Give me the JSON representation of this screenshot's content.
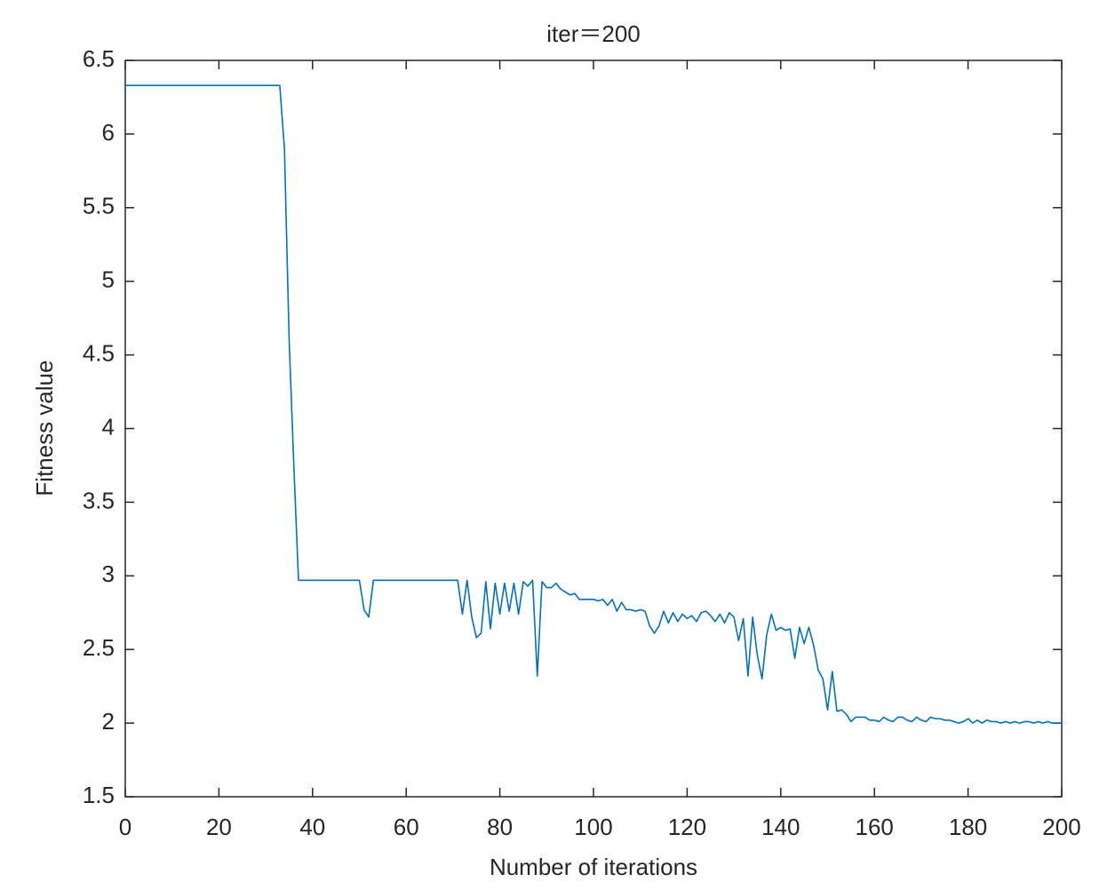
{
  "chart_data": {
    "type": "line",
    "title": "iter＝200",
    "xlabel": "Number of iterations",
    "ylabel": "Fitness value",
    "color": "#0072bd",
    "x": [
      0,
      1,
      2,
      3,
      4,
      5,
      6,
      7,
      8,
      9,
      10,
      11,
      12,
      13,
      14,
      15,
      16,
      17,
      18,
      19,
      20,
      21,
      22,
      23,
      24,
      25,
      26,
      27,
      28,
      29,
      30,
      31,
      32,
      33,
      34,
      35,
      36,
      37,
      38,
      39,
      40,
      41,
      42,
      43,
      44,
      45,
      46,
      47,
      48,
      49,
      50,
      51,
      52,
      53,
      54,
      55,
      56,
      57,
      58,
      59,
      60,
      61,
      62,
      63,
      64,
      65,
      66,
      67,
      68,
      69,
      70,
      71,
      72,
      73,
      74,
      75,
      76,
      77,
      78,
      79,
      80,
      81,
      82,
      83,
      84,
      85,
      86,
      87,
      88,
      89,
      90,
      91,
      92,
      93,
      94,
      95,
      96,
      97,
      98,
      99,
      100,
      101,
      102,
      103,
      104,
      105,
      106,
      107,
      108,
      109,
      110,
      111,
      112,
      113,
      114,
      115,
      116,
      117,
      118,
      119,
      120,
      121,
      122,
      123,
      124,
      125,
      126,
      127,
      128,
      129,
      130,
      131,
      132,
      133,
      134,
      135,
      136,
      137,
      138,
      139,
      140,
      141,
      142,
      143,
      144,
      145,
      146,
      147,
      148,
      149,
      150,
      151,
      152,
      153,
      154,
      155,
      156,
      157,
      158,
      159,
      160,
      161,
      162,
      163,
      164,
      165,
      166,
      167,
      168,
      169,
      170,
      171,
      172,
      173,
      174,
      175,
      176,
      177,
      178,
      179,
      180,
      181,
      182,
      183,
      184,
      185,
      186,
      187,
      188,
      189,
      190,
      191,
      192,
      193,
      194,
      195,
      196,
      197,
      198,
      199,
      200
    ],
    "values": [
      6.33,
      6.33,
      6.33,
      6.33,
      6.33,
      6.33,
      6.33,
      6.33,
      6.33,
      6.33,
      6.33,
      6.33,
      6.33,
      6.33,
      6.33,
      6.33,
      6.33,
      6.33,
      6.33,
      6.33,
      6.33,
      6.33,
      6.33,
      6.33,
      6.33,
      6.33,
      6.33,
      6.33,
      6.33,
      6.33,
      6.33,
      6.33,
      6.33,
      6.33,
      5.9,
      4.6,
      3.75,
      2.97,
      2.97,
      2.97,
      2.97,
      2.97,
      2.97,
      2.97,
      2.97,
      2.97,
      2.97,
      2.97,
      2.97,
      2.97,
      2.97,
      2.77,
      2.72,
      2.97,
      2.97,
      2.97,
      2.97,
      2.97,
      2.97,
      2.97,
      2.97,
      2.97,
      2.97,
      2.97,
      2.97,
      2.97,
      2.97,
      2.97,
      2.97,
      2.97,
      2.97,
      2.97,
      2.74,
      2.97,
      2.72,
      2.58,
      2.61,
      2.96,
      2.64,
      2.95,
      2.74,
      2.95,
      2.76,
      2.95,
      2.74,
      2.96,
      2.93,
      2.97,
      2.32,
      2.96,
      2.92,
      2.92,
      2.95,
      2.91,
      2.89,
      2.87,
      2.88,
      2.84,
      2.84,
      2.84,
      2.84,
      2.83,
      2.84,
      2.8,
      2.84,
      2.76,
      2.82,
      2.77,
      2.77,
      2.76,
      2.77,
      2.76,
      2.66,
      2.61,
      2.66,
      2.76,
      2.68,
      2.75,
      2.69,
      2.74,
      2.71,
      2.73,
      2.69,
      2.75,
      2.76,
      2.73,
      2.69,
      2.74,
      2.68,
      2.75,
      2.72,
      2.56,
      2.71,
      2.32,
      2.72,
      2.46,
      2.3,
      2.6,
      2.74,
      2.63,
      2.65,
      2.63,
      2.64,
      2.44,
      2.65,
      2.54,
      2.65,
      2.53,
      2.36,
      2.3,
      2.09,
      2.35,
      2.08,
      2.09,
      2.06,
      2.01,
      2.04,
      2.04,
      2.04,
      2.02,
      2.02,
      2.01,
      2.04,
      2.02,
      2.01,
      2.04,
      2.04,
      2.02,
      2.01,
      2.04,
      2.02,
      2.01,
      2.04,
      2.03,
      2.03,
      2.02,
      2.02,
      2.01,
      2.0,
      2.01,
      2.03,
      2.0,
      2.02,
      2.0,
      2.02,
      2.01,
      2.01,
      2.0,
      2.01,
      2.0,
      2.01,
      2.0,
      2.01,
      2.01,
      2.0,
      2.01,
      2.0,
      2.01,
      2.0,
      2.0,
      2.0
    ],
    "xlim": [
      0,
      200
    ],
    "xticks": [
      0,
      20,
      40,
      60,
      80,
      100,
      120,
      140,
      160,
      180,
      200
    ],
    "ylim": [
      1.5,
      6.5
    ],
    "yticks": [
      1.5,
      2,
      2.5,
      3,
      3.5,
      4,
      4.5,
      5,
      5.5,
      6,
      6.5
    ],
    "grid": false,
    "box": true
  }
}
